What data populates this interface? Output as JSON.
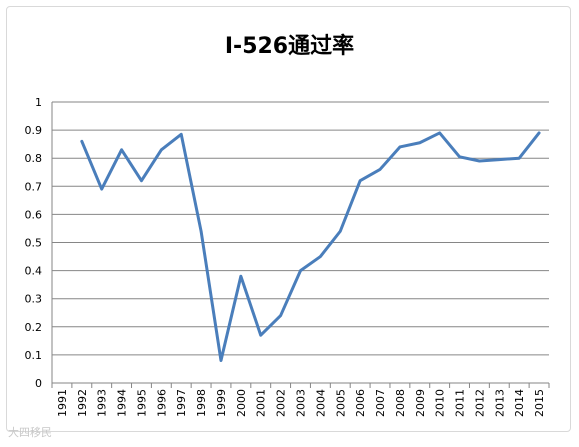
{
  "chart_data": {
    "type": "line",
    "title": "I-526通过率",
    "xlabel": "",
    "ylabel": "",
    "x": [
      "1991",
      "1992",
      "1993",
      "1994",
      "1995",
      "1996",
      "1997",
      "1998",
      "1999",
      "2000",
      "2001",
      "2002",
      "2003",
      "2004",
      "2005",
      "2006",
      "2007",
      "2008",
      "2009",
      "2010",
      "2011",
      "2012",
      "2013",
      "2014",
      "2015"
    ],
    "series": [
      {
        "values": [
          null,
          0.86,
          0.69,
          0.83,
          0.72,
          0.83,
          0.885,
          0.54,
          0.08,
          0.38,
          0.17,
          0.24,
          0.4,
          0.45,
          0.54,
          0.72,
          0.76,
          0.84,
          0.855,
          0.89,
          0.805,
          0.79,
          0.795,
          0.8,
          0.89
        ],
        "color": "#4a7ebb"
      }
    ],
    "ylim": [
      0,
      1
    ],
    "yticks": [
      "0",
      "0.1",
      "0.2",
      "0.3",
      "0.4",
      "0.5",
      "0.6",
      "0.7",
      "0.8",
      "0.9",
      "1"
    ],
    "grid": true,
    "legend": false
  },
  "watermark": {
    "text": "大四移民"
  }
}
